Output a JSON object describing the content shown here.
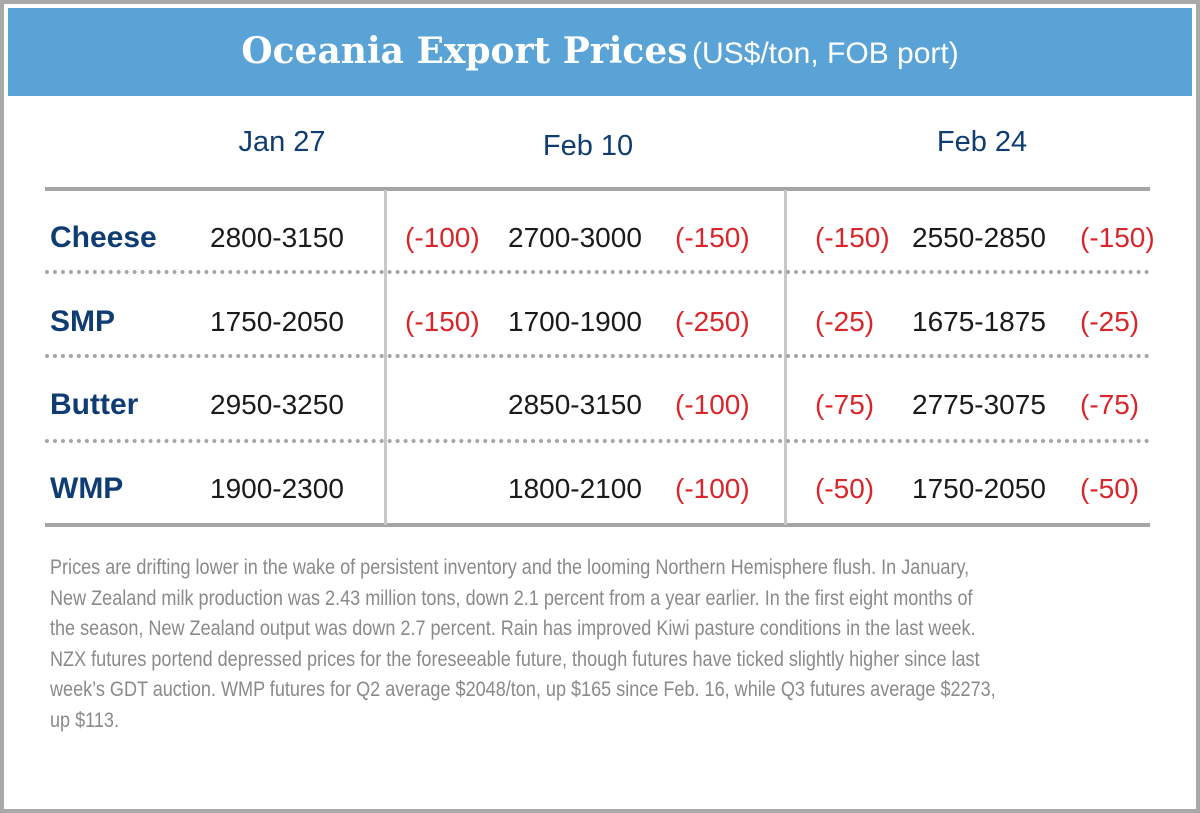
{
  "title": {
    "main": "Oceania Export Prices",
    "unit": "(US$/ton, FOB port)"
  },
  "columns": [
    "Jan 27",
    "Feb 10",
    "Feb 24"
  ],
  "rows": [
    {
      "product": "Cheese",
      "jan27": "2800-3150",
      "chg_a": "(-100)",
      "feb10": "2700-3000",
      "chg_b": "(-150)",
      "chg_c": "(-150)",
      "feb24": "2550-2850",
      "chg_d": "(-150)"
    },
    {
      "product": "SMP",
      "jan27": "1750-2050",
      "chg_a": "(-150)",
      "feb10": "1700-1900",
      "chg_b": "(-250)",
      "chg_c": "(-25)",
      "feb24": "1675-1875",
      "chg_d": "(-25)"
    },
    {
      "product": "Butter",
      "jan27": "2950-3250",
      "chg_a": "",
      "feb10": "2850-3150",
      "chg_b": "(-100)",
      "chg_c": "(-75)",
      "feb24": "2775-3075",
      "chg_d": "(-75)"
    },
    {
      "product": "WMP",
      "jan27": "1900-2300",
      "chg_a": "",
      "feb10": "1800-2100",
      "chg_b": "(-100)",
      "chg_c": "(-50)",
      "feb24": "1750-2050",
      "chg_d": "(-50)"
    }
  ],
  "paragraph_lines": [
    "Prices are drifting lower in the wake of persistent inventory and the looming Northern Hemisphere flush. In January,",
    "New Zealand milk production was 2.43 million tons, down 2.1 percent from a year earlier. In the first eight months of",
    "the season, New Zealand output was down 2.7 percent. Rain has improved Kiwi pasture conditions in the last week.",
    "NZX futures portend depressed prices for the foreseeable future, though futures have ticked slightly higher since last",
    "week’s GDT auction. WMP futures for Q2 average $2048/ton, up $165 since Feb. 16, while Q3 futures average $2273,",
    "up $113."
  ],
  "colors": {
    "band": "#5aa3d6",
    "product": "#0f3d73",
    "change": "#d8262b",
    "text": "#1a1a1a",
    "paragraph": "#8a8a8a"
  }
}
